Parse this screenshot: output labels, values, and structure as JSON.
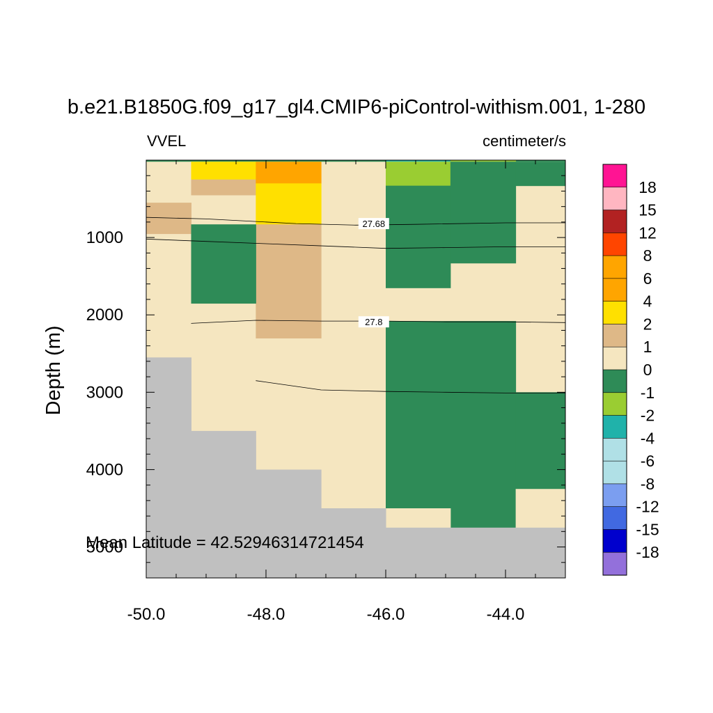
{
  "chart_data": {
    "type": "heatmap",
    "title": "b.e21.B1850G.f09_g17_gl4.CMIP6-piControl-withism.001, 1-280",
    "variable_label": "VVEL",
    "units_label": "centimeter/s",
    "ylabel": "Depth (m)",
    "xlabel": "",
    "annotation": "Mean Latitude = 42.52946314721454",
    "xlim": [
      -50.0,
      -43.0
    ],
    "ylim": [
      0,
      5400
    ],
    "y_reversed": true,
    "x_ticks": [
      "-50.0",
      "-48.0",
      "-46.0",
      "-44.0"
    ],
    "y_ticks": [
      "1000",
      "2000",
      "3000",
      "4000",
      "5000"
    ],
    "colorbar": {
      "labels": [
        "18",
        "15",
        "12",
        "8",
        "6",
        "4",
        "2",
        "1",
        "0",
        "-1",
        "-2",
        "-4",
        "-6",
        "-8",
        "-12",
        "-15",
        "-18"
      ],
      "colors": [
        "#ff1493",
        "#ffb6c1",
        "#b22222",
        "#ff4500",
        "#ffa500",
        "#ffa500",
        "#ffe000",
        "#deb887",
        "#f5e6c0",
        "#2e8b57",
        "#9acd32",
        "#20b2aa",
        "#b0e0e6",
        "#b0e0e6",
        "#7b9ef0",
        "#4169e1",
        "#0000cd",
        "#9370db"
      ]
    },
    "column_edges": [
      -50.0,
      -49.25,
      -48.17,
      -47.08,
      -46.0,
      -44.92,
      -43.83,
      -43.0
    ],
    "row_edges": [
      0,
      20,
      250,
      450,
      550,
      850,
      950,
      1050,
      1150,
      1300,
      1450,
      1650,
      1850,
      2050,
      2300,
      2550,
      2750,
      3000,
      3250,
      3500,
      4000,
      4250,
      4500,
      4750,
      5400
    ],
    "cells": [
      {
        "x0": -50.0,
        "x1": -43.0,
        "y0": 0,
        "y1": 20,
        "color": "#2e8b57"
      },
      {
        "x0": -46.0,
        "x1": -44.92,
        "y0": 0,
        "y1": 20,
        "color": "#20b2aa"
      },
      {
        "x0": -44.92,
        "x1": -43.83,
        "y0": 0,
        "y1": 20,
        "color": "#9acd32"
      },
      {
        "x0": -50.0,
        "x1": -43.0,
        "y0": 20,
        "y1": 5400,
        "color": "#f5e6c0"
      },
      {
        "x0": -49.25,
        "x1": -48.17,
        "y0": 20,
        "y1": 250,
        "color": "#ffe000"
      },
      {
        "x0": -49.25,
        "x1": -48.17,
        "y0": 250,
        "y1": 450,
        "color": "#deb887"
      },
      {
        "x0": -48.17,
        "x1": -47.08,
        "y0": 20,
        "y1": 300,
        "color": "#ffa500"
      },
      {
        "x0": -48.17,
        "x1": -47.08,
        "y0": 300,
        "y1": 830,
        "color": "#ffe000"
      },
      {
        "x0": -48.17,
        "x1": -47.08,
        "y0": 830,
        "y1": 2300,
        "color": "#deb887"
      },
      {
        "x0": -50.0,
        "x1": -49.25,
        "y0": 550,
        "y1": 950,
        "color": "#deb887"
      },
      {
        "x0": -49.25,
        "x1": -48.17,
        "y0": 830,
        "y1": 1850,
        "color": "#2e8b57"
      },
      {
        "x0": -46.0,
        "x1": -44.92,
        "y0": 20,
        "y1": 330,
        "color": "#9acd32"
      },
      {
        "x0": -44.92,
        "x1": -43.83,
        "y0": 20,
        "y1": 1330,
        "color": "#2e8b57"
      },
      {
        "x0": -43.83,
        "x1": -43.0,
        "y0": 20,
        "y1": 330,
        "color": "#2e8b57"
      },
      {
        "x0": -46.0,
        "x1": -44.92,
        "y0": 330,
        "y1": 1650,
        "color": "#2e8b57"
      },
      {
        "x0": -46.0,
        "x1": -43.83,
        "y0": 2080,
        "y1": 4750,
        "color": "#2e8b57"
      },
      {
        "x0": -43.83,
        "x1": -43.0,
        "y0": 3000,
        "y1": 4250,
        "color": "#2e8b57"
      },
      {
        "x0": -46.0,
        "x1": -44.92,
        "y0": 4500,
        "y1": 4750,
        "color": "#f5e6c0"
      },
      {
        "x0": -43.83,
        "x1": -43.0,
        "y0": 4250,
        "y1": 4750,
        "color": "#f5e6c0"
      },
      {
        "x0": -50.0,
        "x1": -49.25,
        "y0": 2550,
        "y1": 5400,
        "color": "#c0c0c0"
      },
      {
        "x0": -49.25,
        "x1": -48.17,
        "y0": 3500,
        "y1": 5400,
        "color": "#c0c0c0"
      },
      {
        "x0": -48.17,
        "x1": -47.08,
        "y0": 4000,
        "y1": 5400,
        "color": "#c0c0c0"
      },
      {
        "x0": -47.08,
        "x1": -46.0,
        "y0": 4500,
        "y1": 5400,
        "color": "#c0c0c0"
      },
      {
        "x0": -46.0,
        "x1": -43.0,
        "y0": 4750,
        "y1": 5400,
        "color": "#c0c0c0"
      }
    ],
    "contours": [
      {
        "label": "",
        "points": [
          [
            -50.0,
            740
          ],
          [
            -49.0,
            760
          ],
          [
            -47.5,
            820
          ],
          [
            -46.5,
            840
          ],
          [
            -45.5,
            830
          ],
          [
            -44.0,
            810
          ],
          [
            -43.0,
            810
          ]
        ]
      },
      {
        "label": "27.68",
        "label_at": [
          -46.2,
          820
        ],
        "points": []
      },
      {
        "label": "",
        "points": [
          [
            -50.0,
            1020
          ],
          [
            -49.0,
            1050
          ],
          [
            -48.0,
            1080
          ],
          [
            -47.0,
            1110
          ],
          [
            -46.0,
            1140
          ],
          [
            -45.0,
            1130
          ],
          [
            -44.0,
            1120
          ],
          [
            -43.0,
            1120
          ]
        ]
      },
      {
        "label": "",
        "points": [
          [
            -49.25,
            2110
          ],
          [
            -48.17,
            2070
          ],
          [
            -47.08,
            2080
          ],
          [
            -46.0,
            2080
          ],
          [
            -45.0,
            2090
          ],
          [
            -44.0,
            2090
          ],
          [
            -43.0,
            2100
          ]
        ]
      },
      {
        "label": "27.8",
        "label_at": [
          -46.2,
          2090
        ],
        "points": []
      },
      {
        "label": "",
        "points": [
          [
            -48.17,
            2850
          ],
          [
            -47.08,
            2970
          ],
          [
            -46.0,
            2990
          ],
          [
            -45.0,
            3000
          ],
          [
            -44.0,
            3010
          ],
          [
            -43.0,
            3010
          ]
        ]
      }
    ]
  }
}
